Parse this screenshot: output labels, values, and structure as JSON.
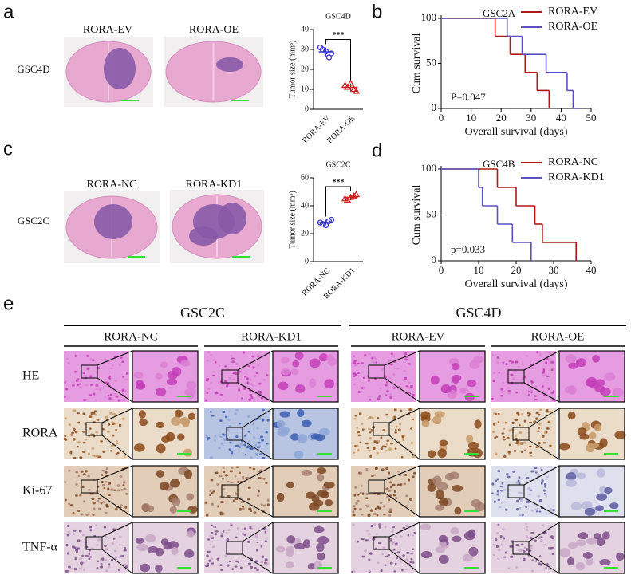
{
  "panel_labels": [
    "a",
    "b",
    "c",
    "d",
    "e"
  ],
  "panel_a": {
    "row_label": "GSC4D",
    "images": [
      "RORA-EV",
      "RORA-OE"
    ]
  },
  "panel_c": {
    "row_label": "GSC2C",
    "images": [
      "RORA-NC",
      "RORA-KD1"
    ]
  },
  "panel_e": {
    "groups": [
      "GSC2C",
      "GSC4D"
    ],
    "columns": [
      "RORA-NC",
      "RORA-KD1",
      "RORA-EV",
      "RORA-OE"
    ],
    "rows": [
      "HE",
      "RORA",
      "Ki-67",
      "TNF-α"
    ]
  },
  "chart_data": [
    {
      "type": "dot",
      "title": "GSC4D",
      "y_label": "Tumor size (mm³)",
      "categories": [
        "RORA-EV",
        "RORA-OE"
      ],
      "colors": [
        "#3a3ad0",
        "#d02020"
      ],
      "values": [
        [
          31,
          28,
          30,
          26,
          29
        ],
        [
          12,
          9,
          11,
          10,
          13
        ]
      ],
      "ylim": [
        0,
        40
      ],
      "yticks": [
        0,
        10,
        20,
        30,
        40
      ],
      "annotation": "***"
    },
    {
      "type": "survival",
      "title": "GSC2A",
      "x_label": "Overall survival (days)",
      "y_label": "Cum survival",
      "annotation": "P=0.047",
      "legend": "upper right",
      "xlim": [
        0,
        50
      ],
      "xticks": [
        0,
        10,
        20,
        30,
        40,
        50
      ],
      "ylim": [
        0,
        100
      ],
      "yticks": [
        0,
        50,
        100
      ],
      "series": [
        {
          "name": "RORA-EV",
          "color": "#b01818",
          "x": [
            0,
            18,
            23,
            28,
            32,
            36
          ],
          "values": [
            100,
            80,
            60,
            40,
            20,
            0
          ]
        },
        {
          "name": "RORA-OE",
          "color": "#5a50c0",
          "x": [
            0,
            22,
            27,
            35,
            42,
            44,
            46
          ],
          "values": [
            100,
            80,
            60,
            40,
            20,
            0,
            0
          ]
        }
      ]
    },
    {
      "type": "dot",
      "title": "GSC2C",
      "y_label": "Tumor size (mm³)",
      "categories": [
        "RORA-NC",
        "RORA-KD1"
      ],
      "colors": [
        "#3a3ad0",
        "#d02020"
      ],
      "values": [
        [
          28,
          30,
          27,
          29,
          26
        ],
        [
          45,
          48,
          44,
          47,
          46
        ]
      ],
      "ylim": [
        0,
        60
      ],
      "yticks": [
        0,
        20,
        40,
        60
      ],
      "annotation": "***"
    },
    {
      "type": "survival",
      "title": "GSC4B",
      "x_label": "Overall survival (days)",
      "y_label": "Cum survival",
      "annotation": "p=0.033",
      "legend": "upper right",
      "xlim": [
        0,
        40
      ],
      "xticks": [
        0,
        10,
        20,
        30,
        40
      ],
      "ylim": [
        0,
        100
      ],
      "yticks": [
        0,
        50,
        100
      ],
      "series": [
        {
          "name": "RORA-NC",
          "color": "#b01818",
          "x": [
            0,
            15,
            20,
            25,
            27,
            36
          ],
          "values": [
            100,
            80,
            60,
            40,
            20,
            0
          ]
        },
        {
          "name": "RORA-KD1",
          "color": "#5a50c0",
          "x": [
            0,
            10,
            11,
            15,
            19,
            24
          ],
          "values": [
            100,
            80,
            60,
            40,
            20,
            0
          ]
        }
      ]
    }
  ]
}
